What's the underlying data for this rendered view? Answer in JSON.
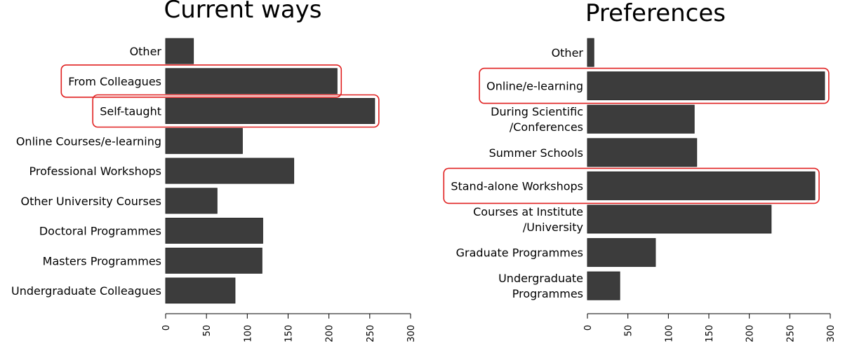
{
  "chart_data": [
    {
      "type": "bar",
      "orientation": "horizontal",
      "title": "Current ways",
      "categories": [
        "Other",
        "From Colleagues",
        "Self-taught",
        "Online Courses/e-learning",
        "Professional Workshops",
        "Other University Courses",
        "Doctoral Programmes",
        "Masters Programmes",
        "Undergraduate Colleagues"
      ],
      "values": [
        34,
        210,
        256,
        94,
        157,
        63,
        119,
        118,
        85
      ],
      "highlighted": [
        "From Colleagues",
        "Self-taught"
      ],
      "xlim": [
        0,
        300
      ],
      "xticks": [
        0,
        50,
        100,
        150,
        200,
        250,
        300
      ],
      "xlabel": "",
      "ylabel": "",
      "grid": false
    },
    {
      "type": "bar",
      "orientation": "horizontal",
      "title": "Preferences",
      "categories": [
        "Other",
        "Online/e-learning",
        "During Scientific /Conferences",
        "Summer Schools",
        "Stand-alone Workshops",
        "Courses at Institute /University",
        "Graduate Programmes",
        "Undergraduate Programmes"
      ],
      "category_lines": [
        [
          "Other"
        ],
        [
          "Online/e-learning"
        ],
        [
          "During Scientific",
          "/Conferences"
        ],
        [
          "Summer Schools"
        ],
        [
          "Stand-alone Workshops"
        ],
        [
          "Courses at Institute",
          "/University"
        ],
        [
          "Graduate Programmes"
        ],
        [
          "Undergraduate",
          "Programmes"
        ]
      ],
      "values": [
        8,
        293,
        132,
        135,
        281,
        227,
        84,
        40
      ],
      "highlighted": [
        "Online/e-learning",
        "Stand-alone Workshops"
      ],
      "xlim": [
        0,
        300
      ],
      "xticks": [
        0,
        50,
        100,
        150,
        200,
        250,
        300
      ],
      "xlabel": "",
      "ylabel": "",
      "grid": false
    }
  ],
  "colors": {
    "bar": "#3c3c3c",
    "highlight": "#e02020"
  }
}
